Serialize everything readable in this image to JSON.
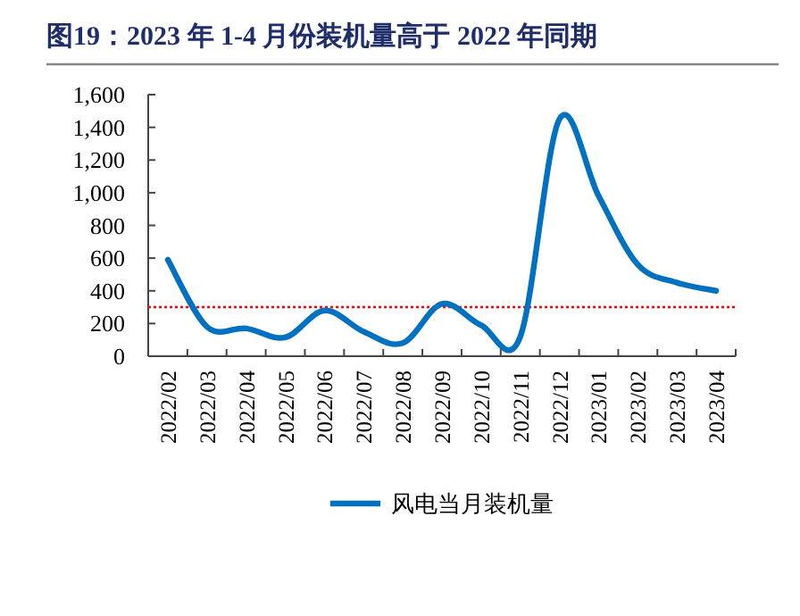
{
  "chart_data": {
    "type": "line",
    "title": "图19：2023 年 1-4 月份装机量高于 2022 年同期",
    "categories": [
      "2022/02",
      "2022/03",
      "2022/04",
      "2022/05",
      "2022/06",
      "2022/07",
      "2022/08",
      "2022/09",
      "2022/10",
      "2022/11",
      "2022/12",
      "2023/01",
      "2023/02",
      "2023/03",
      "2023/04"
    ],
    "series": [
      {
        "name": "风电当月装机量",
        "color": "#0070c0",
        "values": [
          590,
          180,
          170,
          115,
          280,
          150,
          80,
          320,
          190,
          120,
          1450,
          980,
          560,
          450,
          400
        ]
      }
    ],
    "ylim": [
      0,
      1600
    ],
    "yticks": [
      0,
      {
        "value": 200,
        "label": "200"
      },
      {
        "value": 400,
        "label": "400"
      },
      {
        "value": 600,
        "label": "600"
      },
      {
        "value": 800,
        "label": "800"
      },
      {
        "value": 1000,
        "label": "1,000"
      },
      {
        "value": 1200,
        "label": "1,200"
      },
      {
        "value": 1400,
        "label": "1,400"
      },
      {
        "value": 1600,
        "label": "1,600"
      }
    ],
    "ref_lines": [
      {
        "axis": "y",
        "value": 300,
        "color": "#ff0000",
        "line_style": "dotted"
      }
    ],
    "legend": "bottom",
    "grid": false,
    "marker": "none",
    "line_style": "solid"
  }
}
